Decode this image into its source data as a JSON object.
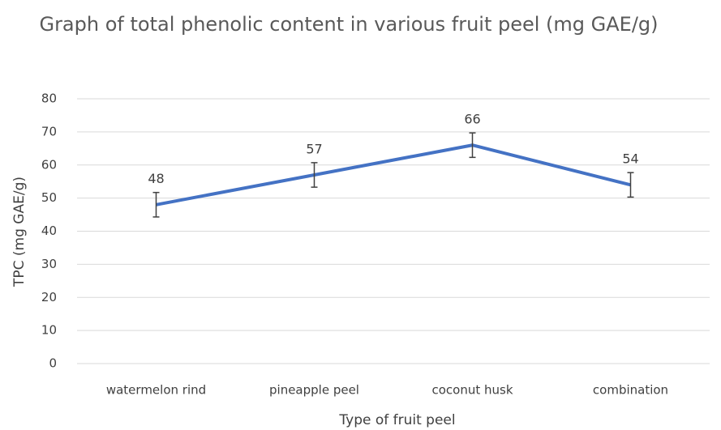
{
  "chart_data": {
    "type": "line",
    "title": "Graph of total phenolic content in various fruit peel (mg GAE/g)",
    "x_label": "Type of fruit peel",
    "y_label": "TPC (mg GAE/g)",
    "categories": [
      "watermelon rind",
      "pineapple peel",
      "coconut husk",
      "combination"
    ],
    "series": [
      {
        "name": "TPC",
        "color": "#4472c4",
        "values": [
          48,
          57,
          66,
          54
        ],
        "errors": [
          3.7,
          3.7,
          3.7,
          3.7
        ]
      }
    ],
    "ylim": [
      0,
      80
    ],
    "yticks": [
      0,
      10,
      20,
      30,
      40,
      50,
      60,
      70,
      80
    ],
    "grid": true
  }
}
